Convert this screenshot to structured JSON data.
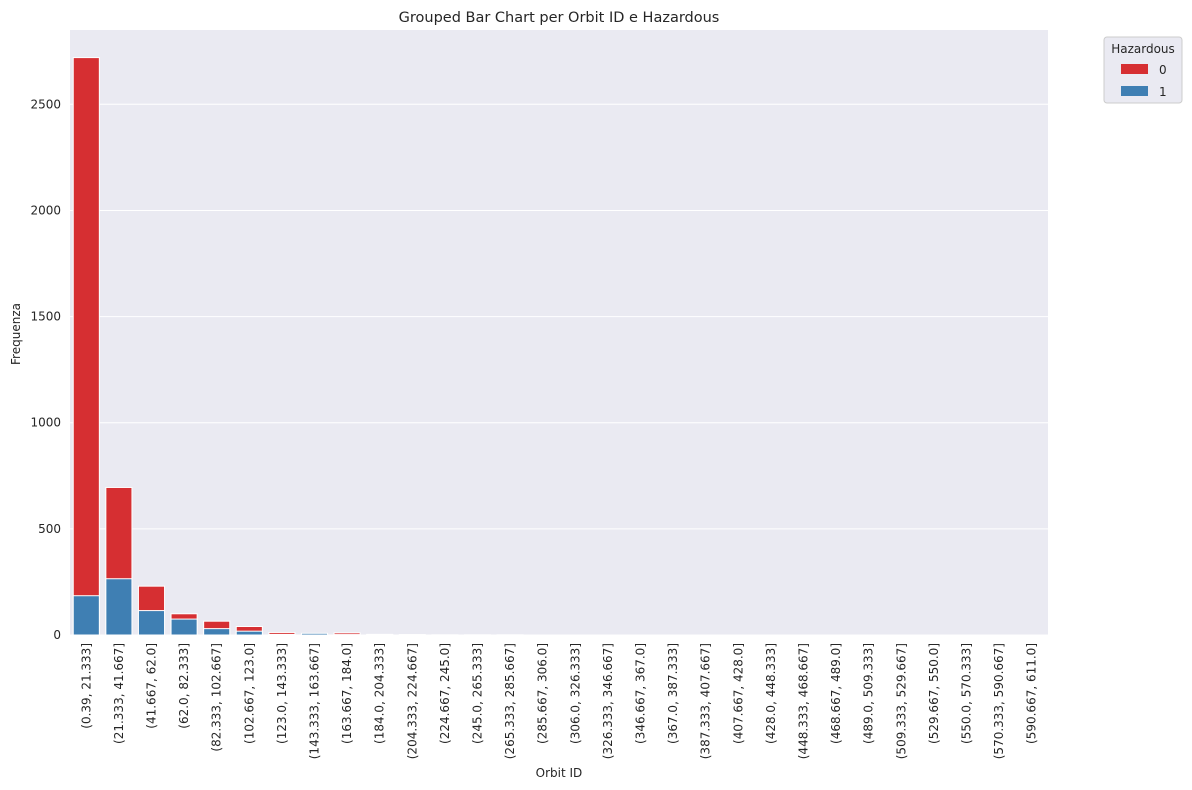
{
  "chart_data": {
    "type": "bar",
    "stacked": true,
    "title": "Grouped Bar Chart per Orbit ID e Hazardous",
    "xlabel": "Orbit ID",
    "ylabel": "Frequenza",
    "ylim": [
      0,
      2850
    ],
    "yticks": [
      0,
      500,
      1000,
      1500,
      2000,
      2500
    ],
    "grid": true,
    "legend": {
      "title": "Hazardous",
      "placement": "outside-top-right"
    },
    "categories": [
      "(0.39, 21.333]",
      "(21.333, 41.667]",
      "(41.667, 62.0]",
      "(62.0, 82.333]",
      "(82.333, 102.667]",
      "(102.667, 123.0]",
      "(123.0, 143.333]",
      "(143.333, 163.667]",
      "(163.667, 184.0]",
      "(184.0, 204.333]",
      "(204.333, 224.667]",
      "(224.667, 245.0]",
      "(245.0, 265.333]",
      "(265.333, 285.667]",
      "(285.667, 306.0]",
      "(306.0, 326.333]",
      "(326.333, 346.667]",
      "(346.667, 367.0]",
      "(367.0, 387.333]",
      "(387.333, 407.667]",
      "(407.667, 428.0]",
      "(428.0, 448.333]",
      "(448.333, 468.667]",
      "(468.667, 489.0]",
      "(489.0, 509.333]",
      "(509.333, 529.667]",
      "(529.667, 550.0]",
      "(550.0, 570.333]",
      "(570.333, 590.667]",
      "(590.667, 611.0]"
    ],
    "series": [
      {
        "name": "0",
        "color": "#d62f32",
        "values": [
          2720,
          695,
          230,
          100,
          65,
          40,
          12,
          5,
          10,
          3,
          2,
          1,
          1,
          1,
          0,
          0,
          0,
          0,
          0,
          0,
          0,
          0,
          0,
          0,
          0,
          0,
          0,
          0,
          0,
          0
        ]
      },
      {
        "name": "1",
        "color": "#3f7fb3",
        "values": [
          185,
          265,
          115,
          75,
          30,
          18,
          3,
          8,
          2,
          1,
          0,
          0,
          0,
          0,
          0,
          0,
          0,
          0,
          0,
          0,
          0,
          0,
          0,
          0,
          0,
          0,
          0,
          0,
          0,
          0
        ]
      }
    ]
  }
}
